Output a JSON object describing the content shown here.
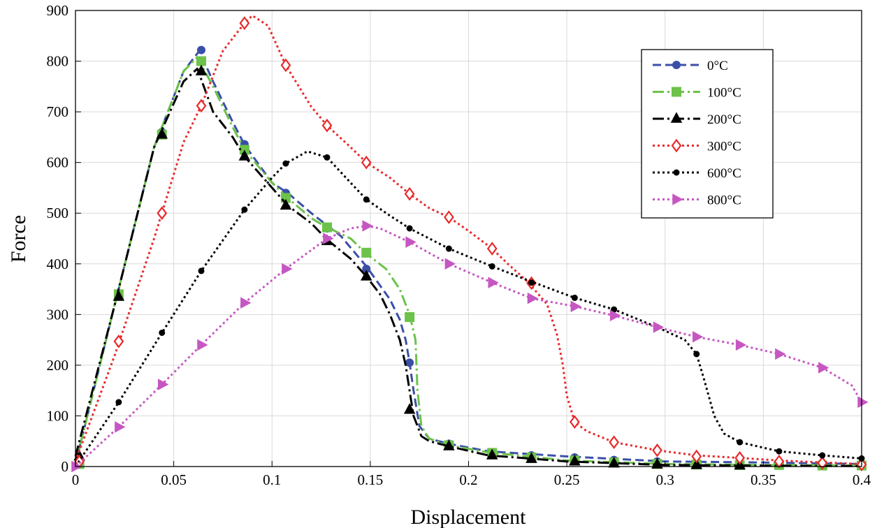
{
  "chart_data": {
    "type": "line",
    "title": "",
    "xlabel": "Displacement",
    "ylabel": "Force",
    "xlim": [
      0,
      0.4
    ],
    "ylim": [
      0,
      900
    ],
    "grid": true,
    "legend_position": "top-right",
    "x_ticks": [
      {
        "value": 0,
        "label": "0"
      },
      {
        "value": 0.05,
        "label": "0.05"
      },
      {
        "value": 0.1,
        "label": "0.1"
      },
      {
        "value": 0.15,
        "label": "0.15"
      },
      {
        "value": 0.2,
        "label": "0.2"
      },
      {
        "value": 0.25,
        "label": "0.25"
      },
      {
        "value": 0.3,
        "label": "0.3"
      },
      {
        "value": 0.35,
        "label": "0.35"
      },
      {
        "value": 0.4,
        "label": "0.4"
      }
    ],
    "y_ticks": [
      {
        "value": 0,
        "label": "0"
      },
      {
        "value": 100,
        "label": "100"
      },
      {
        "value": 200,
        "label": "200"
      },
      {
        "value": 300,
        "label": "300"
      },
      {
        "value": 400,
        "label": "400"
      },
      {
        "value": 500,
        "label": "500"
      },
      {
        "value": 600,
        "label": "600"
      },
      {
        "value": 700,
        "label": "700"
      },
      {
        "value": 800,
        "label": "800"
      },
      {
        "value": 900,
        "label": "900"
      }
    ],
    "series": [
      {
        "name": "0°C",
        "color": "#3b4fa8",
        "dash": "12,6",
        "marker": "circle",
        "fill": true,
        "line": [
          [
            0,
            5
          ],
          [
            0.02,
            320
          ],
          [
            0.04,
            630
          ],
          [
            0.055,
            780
          ],
          [
            0.063,
            820
          ],
          [
            0.07,
            760
          ],
          [
            0.08,
            680
          ],
          [
            0.086,
            635
          ],
          [
            0.1,
            560
          ],
          [
            0.108,
            540
          ],
          [
            0.12,
            500
          ],
          [
            0.135,
            455
          ],
          [
            0.148,
            395
          ],
          [
            0.16,
            330
          ],
          [
            0.165,
            290
          ],
          [
            0.168,
            250
          ],
          [
            0.17,
            205
          ],
          [
            0.172,
            150
          ],
          [
            0.175,
            80
          ],
          [
            0.18,
            55
          ],
          [
            0.19,
            45
          ],
          [
            0.21,
            30
          ],
          [
            0.25,
            20
          ],
          [
            0.3,
            10
          ],
          [
            0.35,
            8
          ],
          [
            0.4,
            5
          ]
        ],
        "markers": [
          [
            0.002,
            5
          ],
          [
            0.022,
            340
          ],
          [
            0.044,
            660
          ],
          [
            0.064,
            822
          ],
          [
            0.086,
            636
          ],
          [
            0.107,
            540
          ],
          [
            0.128,
            470
          ],
          [
            0.148,
            390
          ],
          [
            0.17,
            205
          ],
          [
            0.19,
            45
          ],
          [
            0.212,
            28
          ],
          [
            0.232,
            22
          ],
          [
            0.254,
            18
          ],
          [
            0.274,
            13
          ],
          [
            0.296,
            10
          ],
          [
            0.316,
            9
          ],
          [
            0.338,
            8
          ],
          [
            0.358,
            7
          ],
          [
            0.38,
            6
          ],
          [
            0.4,
            5
          ]
        ]
      },
      {
        "name": "100°C",
        "color": "#6cc24a",
        "dash": "16,5,3,5",
        "marker": "square",
        "fill": true,
        "line": [
          [
            0,
            5
          ],
          [
            0.02,
            320
          ],
          [
            0.04,
            630
          ],
          [
            0.055,
            780
          ],
          [
            0.062,
            808
          ],
          [
            0.07,
            750
          ],
          [
            0.08,
            670
          ],
          [
            0.086,
            625
          ],
          [
            0.1,
            560
          ],
          [
            0.108,
            530
          ],
          [
            0.12,
            490
          ],
          [
            0.128,
            472
          ],
          [
            0.14,
            450
          ],
          [
            0.148,
            420
          ],
          [
            0.158,
            390
          ],
          [
            0.165,
            350
          ],
          [
            0.17,
            300
          ],
          [
            0.173,
            250
          ],
          [
            0.174,
            150
          ],
          [
            0.176,
            80
          ],
          [
            0.18,
            55
          ],
          [
            0.19,
            42
          ],
          [
            0.21,
            28
          ],
          [
            0.25,
            12
          ],
          [
            0.3,
            5
          ],
          [
            0.35,
            3
          ],
          [
            0.4,
            2
          ]
        ],
        "markers": [
          [
            0.002,
            5
          ],
          [
            0.022,
            340
          ],
          [
            0.044,
            655
          ],
          [
            0.064,
            800
          ],
          [
            0.086,
            625
          ],
          [
            0.107,
            530
          ],
          [
            0.128,
            472
          ],
          [
            0.148,
            422
          ],
          [
            0.17,
            295
          ],
          [
            0.19,
            42
          ],
          [
            0.212,
            27
          ],
          [
            0.232,
            18
          ],
          [
            0.254,
            12
          ],
          [
            0.274,
            8
          ],
          [
            0.296,
            5
          ],
          [
            0.316,
            4
          ],
          [
            0.338,
            3
          ],
          [
            0.358,
            3
          ],
          [
            0.38,
            2
          ],
          [
            0.4,
            2
          ]
        ]
      },
      {
        "name": "200°C",
        "color": "#000000",
        "dash": "16,5,3,5",
        "marker": "triangle-up",
        "fill": true,
        "line": [
          [
            0,
            20
          ],
          [
            0.02,
            320
          ],
          [
            0.04,
            630
          ],
          [
            0.055,
            760
          ],
          [
            0.062,
            785
          ],
          [
            0.07,
            700
          ],
          [
            0.08,
            650
          ],
          [
            0.086,
            612
          ],
          [
            0.1,
            550
          ],
          [
            0.108,
            515
          ],
          [
            0.12,
            480
          ],
          [
            0.128,
            448
          ],
          [
            0.14,
            410
          ],
          [
            0.148,
            375
          ],
          [
            0.155,
            340
          ],
          [
            0.16,
            300
          ],
          [
            0.165,
            250
          ],
          [
            0.168,
            200
          ],
          [
            0.17,
            150
          ],
          [
            0.172,
            100
          ],
          [
            0.176,
            60
          ],
          [
            0.18,
            50
          ],
          [
            0.19,
            40
          ],
          [
            0.21,
            22
          ],
          [
            0.25,
            10
          ],
          [
            0.3,
            3
          ],
          [
            0.338,
            2
          ],
          [
            0.4,
            1
          ]
        ],
        "markers": [
          [
            0.002,
            20
          ],
          [
            0.022,
            335
          ],
          [
            0.044,
            655
          ],
          [
            0.064,
            780
          ],
          [
            0.086,
            612
          ],
          [
            0.107,
            515
          ],
          [
            0.128,
            445
          ],
          [
            0.148,
            375
          ],
          [
            0.17,
            112
          ],
          [
            0.19,
            40
          ],
          [
            0.212,
            22
          ],
          [
            0.232,
            15
          ],
          [
            0.254,
            10
          ],
          [
            0.274,
            6
          ],
          [
            0.296,
            4
          ],
          [
            0.316,
            3
          ],
          [
            0.338,
            2
          ]
        ]
      },
      {
        "name": "300°C",
        "color": "#e8292a",
        "dash": "3,4",
        "marker": "diamond",
        "fill": false,
        "line": [
          [
            0,
            10
          ],
          [
            0.02,
            220
          ],
          [
            0.04,
            450
          ],
          [
            0.055,
            640
          ],
          [
            0.064,
            712
          ],
          [
            0.075,
            820
          ],
          [
            0.086,
            875
          ],
          [
            0.09,
            890
          ],
          [
            0.098,
            870
          ],
          [
            0.107,
            792
          ],
          [
            0.12,
            710
          ],
          [
            0.128,
            673
          ],
          [
            0.14,
            630
          ],
          [
            0.148,
            600
          ],
          [
            0.16,
            570
          ],
          [
            0.17,
            538
          ],
          [
            0.18,
            510
          ],
          [
            0.19,
            492
          ],
          [
            0.2,
            465
          ],
          [
            0.212,
            430
          ],
          [
            0.22,
            400
          ],
          [
            0.23,
            365
          ],
          [
            0.24,
            320
          ],
          [
            0.245,
            260
          ],
          [
            0.248,
            200
          ],
          [
            0.25,
            140
          ],
          [
            0.254,
            88
          ],
          [
            0.26,
            70
          ],
          [
            0.274,
            48
          ],
          [
            0.296,
            32
          ],
          [
            0.316,
            22
          ],
          [
            0.338,
            17
          ],
          [
            0.358,
            12
          ],
          [
            0.38,
            8
          ],
          [
            0.4,
            5
          ]
        ],
        "markers": [
          [
            0.002,
            10
          ],
          [
            0.022,
            247
          ],
          [
            0.044,
            500
          ],
          [
            0.064,
            712
          ],
          [
            0.086,
            875
          ],
          [
            0.107,
            792
          ],
          [
            0.128,
            673
          ],
          [
            0.148,
            600
          ],
          [
            0.17,
            538
          ],
          [
            0.19,
            492
          ],
          [
            0.212,
            430
          ],
          [
            0.232,
            362
          ],
          [
            0.254,
            88
          ],
          [
            0.274,
            48
          ],
          [
            0.296,
            32
          ],
          [
            0.316,
            20
          ],
          [
            0.338,
            17
          ],
          [
            0.358,
            10
          ],
          [
            0.38,
            7
          ],
          [
            0.4,
            4
          ]
        ]
      },
      {
        "name": "600°C",
        "color": "#000000",
        "dash": "3,4",
        "marker": "circle-small",
        "fill": true,
        "line": [
          [
            0,
            0
          ],
          [
            0.022,
            127
          ],
          [
            0.044,
            264
          ],
          [
            0.064,
            386
          ],
          [
            0.086,
            507
          ],
          [
            0.1,
            570
          ],
          [
            0.107,
            598
          ],
          [
            0.118,
            622
          ],
          [
            0.128,
            610
          ],
          [
            0.14,
            560
          ],
          [
            0.148,
            527
          ],
          [
            0.16,
            495
          ],
          [
            0.17,
            470
          ],
          [
            0.19,
            430
          ],
          [
            0.212,
            395
          ],
          [
            0.232,
            365
          ],
          [
            0.254,
            333
          ],
          [
            0.274,
            310
          ],
          [
            0.296,
            275
          ],
          [
            0.31,
            250
          ],
          [
            0.316,
            222
          ],
          [
            0.32,
            170
          ],
          [
            0.325,
            100
          ],
          [
            0.33,
            65
          ],
          [
            0.338,
            48
          ],
          [
            0.358,
            30
          ],
          [
            0.38,
            22
          ],
          [
            0.4,
            16
          ]
        ],
        "markers": [
          [
            0,
            0
          ],
          [
            0.022,
            127
          ],
          [
            0.044,
            264
          ],
          [
            0.064,
            386
          ],
          [
            0.086,
            507
          ],
          [
            0.107,
            598
          ],
          [
            0.128,
            610
          ],
          [
            0.148,
            527
          ],
          [
            0.17,
            470
          ],
          [
            0.19,
            430
          ],
          [
            0.212,
            395
          ],
          [
            0.232,
            363
          ],
          [
            0.254,
            333
          ],
          [
            0.274,
            310
          ],
          [
            0.296,
            275
          ],
          [
            0.316,
            222
          ],
          [
            0.338,
            48
          ],
          [
            0.358,
            30
          ],
          [
            0.38,
            22
          ],
          [
            0.4,
            16
          ]
        ]
      },
      {
        "name": "800°C",
        "color": "#c657c2",
        "dash": "3,4",
        "marker": "triangle-right",
        "fill": true,
        "line": [
          [
            0,
            0
          ],
          [
            0.022,
            78
          ],
          [
            0.044,
            162
          ],
          [
            0.064,
            240
          ],
          [
            0.086,
            323
          ],
          [
            0.107,
            390
          ],
          [
            0.128,
            450
          ],
          [
            0.14,
            470
          ],
          [
            0.148,
            475
          ],
          [
            0.155,
            470
          ],
          [
            0.17,
            443
          ],
          [
            0.19,
            400
          ],
          [
            0.212,
            363
          ],
          [
            0.232,
            332
          ],
          [
            0.254,
            316
          ],
          [
            0.274,
            298
          ],
          [
            0.296,
            275
          ],
          [
            0.316,
            256
          ],
          [
            0.338,
            240
          ],
          [
            0.358,
            222
          ],
          [
            0.38,
            195
          ],
          [
            0.395,
            160
          ],
          [
            0.4,
            127
          ]
        ],
        "markers": [
          [
            0,
            0
          ],
          [
            0.022,
            78
          ],
          [
            0.044,
            162
          ],
          [
            0.064,
            240
          ],
          [
            0.086,
            323
          ],
          [
            0.107,
            390
          ],
          [
            0.128,
            450
          ],
          [
            0.148,
            475
          ],
          [
            0.17,
            443
          ],
          [
            0.19,
            400
          ],
          [
            0.212,
            363
          ],
          [
            0.232,
            332
          ],
          [
            0.254,
            316
          ],
          [
            0.274,
            298
          ],
          [
            0.296,
            275
          ],
          [
            0.316,
            256
          ],
          [
            0.338,
            240
          ],
          [
            0.358,
            222
          ],
          [
            0.38,
            195
          ],
          [
            0.4,
            127
          ]
        ]
      }
    ]
  }
}
